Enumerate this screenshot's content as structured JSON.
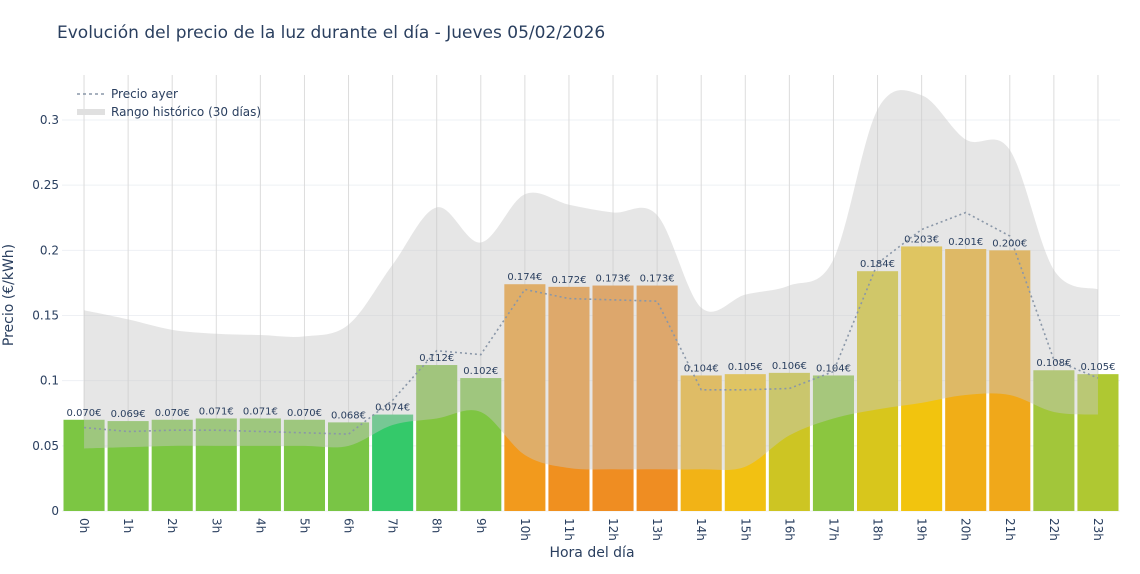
{
  "chart_data": {
    "type": "bar",
    "title": "Evolución del precio de la luz durante el día - Jueves 05/02/2026",
    "xlabel": "Hora del día",
    "ylabel": "Precio (€/kWh)",
    "ylim": [
      0,
      0.33
    ],
    "yticks": [
      "0",
      "0.05",
      "0.1",
      "0.15",
      "0.2",
      "0.25",
      "0.3"
    ],
    "ytick_values": [
      0,
      0.05,
      0.1,
      0.15,
      0.2,
      0.25,
      0.3
    ],
    "grid": true,
    "legend_position": "top-left",
    "categories": [
      "0h",
      "1h",
      "2h",
      "3h",
      "4h",
      "5h",
      "6h",
      "7h",
      "8h",
      "9h",
      "10h",
      "11h",
      "12h",
      "13h",
      "14h",
      "15h",
      "16h",
      "17h",
      "18h",
      "19h",
      "20h",
      "21h",
      "22h",
      "23h"
    ],
    "values": [
      0.07,
      0.069,
      0.07,
      0.071,
      0.071,
      0.07,
      0.068,
      0.074,
      0.112,
      0.102,
      0.174,
      0.172,
      0.173,
      0.173,
      0.104,
      0.105,
      0.106,
      0.104,
      0.184,
      0.203,
      0.201,
      0.2,
      0.108,
      0.105
    ],
    "labels": [
      "0.070€",
      "0.069€",
      "0.070€",
      "0.071€",
      "0.071€",
      "0.070€",
      "0.068€",
      "0.074€",
      "0.112€",
      "0.102€",
      "0.174€",
      "0.172€",
      "0.173€",
      "0.173€",
      "0.104€",
      "0.105€",
      "0.106€",
      "0.104€",
      "0.184€",
      "0.203€",
      "0.201€",
      "0.200€",
      "0.108€",
      "0.105€"
    ],
    "bar_colors": [
      "#7cc643",
      "#7cc643",
      "#7cc643",
      "#7cc643",
      "#7cc643",
      "#7cc643",
      "#79c545",
      "#34c96a",
      "#82c440",
      "#7ec542",
      "#f29a1d",
      "#f0901f",
      "#ef8d22",
      "#ef8d22",
      "#f2b316",
      "#f2c112",
      "#cdc523",
      "#8bc63f",
      "#d8c61c",
      "#f2c40e",
      "#f1ae17",
      "#f0a81a",
      "#a2c63a",
      "#afc832"
    ],
    "series": [
      {
        "name": "Precio ayer",
        "type": "line",
        "style": "dotted",
        "color": "#8a97a8",
        "values": [
          0.064,
          0.061,
          0.062,
          0.062,
          0.061,
          0.06,
          0.059,
          0.085,
          0.123,
          0.12,
          0.17,
          0.163,
          0.162,
          0.161,
          0.093,
          0.093,
          0.094,
          0.107,
          0.19,
          0.216,
          0.229,
          0.211,
          0.116,
          0.102
        ]
      },
      {
        "name": "Rango histórico (30 días)",
        "type": "area-range",
        "color": "#d9d9d9",
        "upper": [
          0.154,
          0.147,
          0.139,
          0.136,
          0.135,
          0.134,
          0.143,
          0.189,
          0.233,
          0.206,
          0.243,
          0.235,
          0.229,
          0.227,
          0.156,
          0.166,
          0.173,
          0.193,
          0.308,
          0.319,
          0.285,
          0.277,
          0.185,
          0.17
        ],
        "lower": [
          0.048,
          0.049,
          0.05,
          0.05,
          0.05,
          0.05,
          0.05,
          0.066,
          0.071,
          0.076,
          0.043,
          0.033,
          0.032,
          0.032,
          0.032,
          0.034,
          0.058,
          0.071,
          0.078,
          0.083,
          0.089,
          0.089,
          0.076,
          0.074
        ]
      }
    ]
  }
}
